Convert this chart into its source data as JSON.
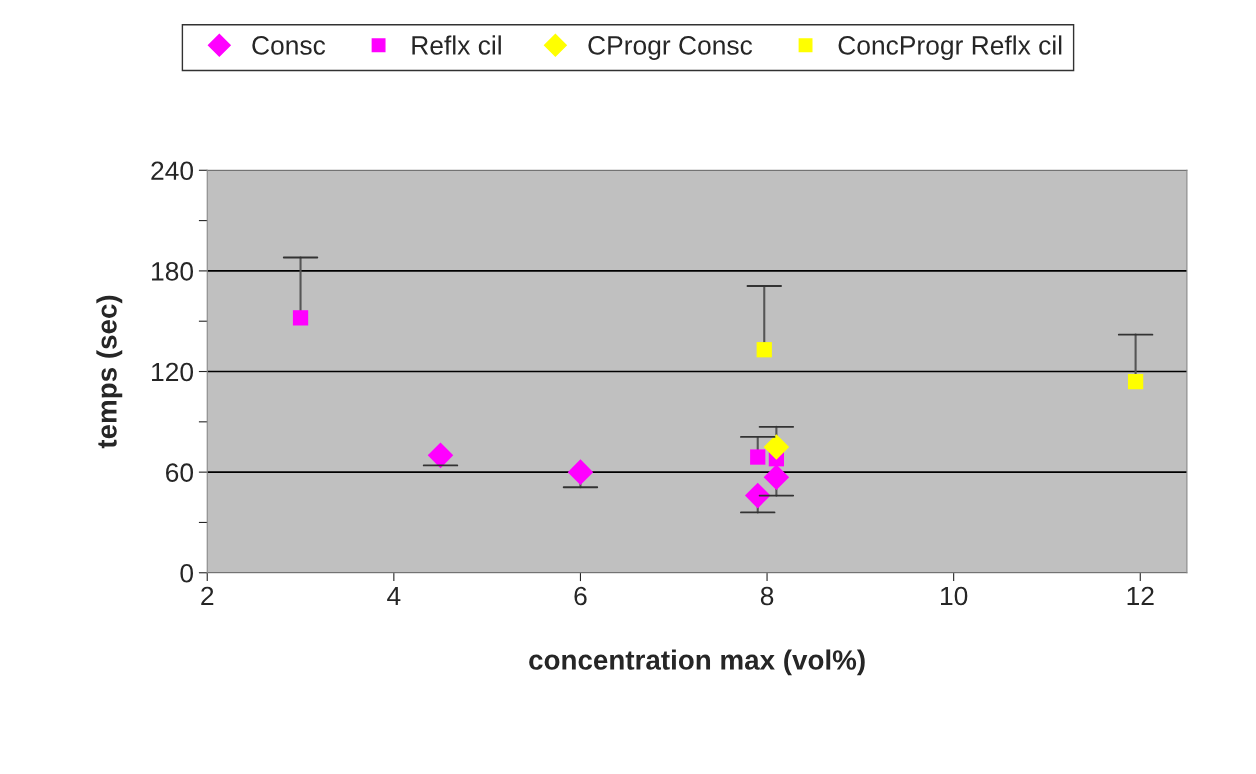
{
  "chart_data": {
    "type": "scatter",
    "xlabel": "concentration max (vol%)",
    "ylabel": "temps (sec)",
    "xlim": [
      2,
      12.5
    ],
    "xticks": [
      2,
      4,
      6,
      8,
      10,
      12
    ],
    "ylim": [
      0,
      240
    ],
    "yticks": [
      0,
      {
        "value": 30,
        "label": null
      },
      60,
      {
        "value": 90,
        "label": null
      },
      120,
      {
        "value": 150,
        "label": null
      },
      180,
      {
        "value": 210,
        "label": null
      },
      240
    ],
    "grid": "y",
    "legend": "top",
    "series": [
      {
        "name": "Consc",
        "color": "#ff00ff",
        "marker": "diamond",
        "x": [
          4.5,
          6,
          7.9,
          8.1
        ],
        "values": [
          70,
          60,
          46,
          57
        ],
        "errors": [
          [
            64,
            70
          ],
          [
            51,
            60
          ],
          [
            36,
            46
          ],
          [
            46,
            57
          ]
        ]
      },
      {
        "name": "Reflx cil",
        "color": "#ff00ff",
        "marker": "square",
        "x": [
          3,
          7.9,
          8.1
        ],
        "values": [
          152,
          69,
          68
        ],
        "errors": [
          [
            152,
            188
          ],
          [
            69,
            81
          ],
          null
        ]
      },
      {
        "name": "CProgr Consc",
        "color": "#ffff00",
        "marker": "diamond",
        "x": [
          8.1
        ],
        "values": [
          75
        ],
        "errors": [
          [
            75,
            87
          ]
        ]
      },
      {
        "name": "ConcProgr Reflx cil",
        "color": "#ffff00",
        "marker": "square",
        "x": [
          7.97,
          11.95
        ],
        "values": [
          133,
          114
        ],
        "errors": [
          [
            133,
            171
          ],
          [
            114,
            142
          ]
        ]
      }
    ]
  }
}
